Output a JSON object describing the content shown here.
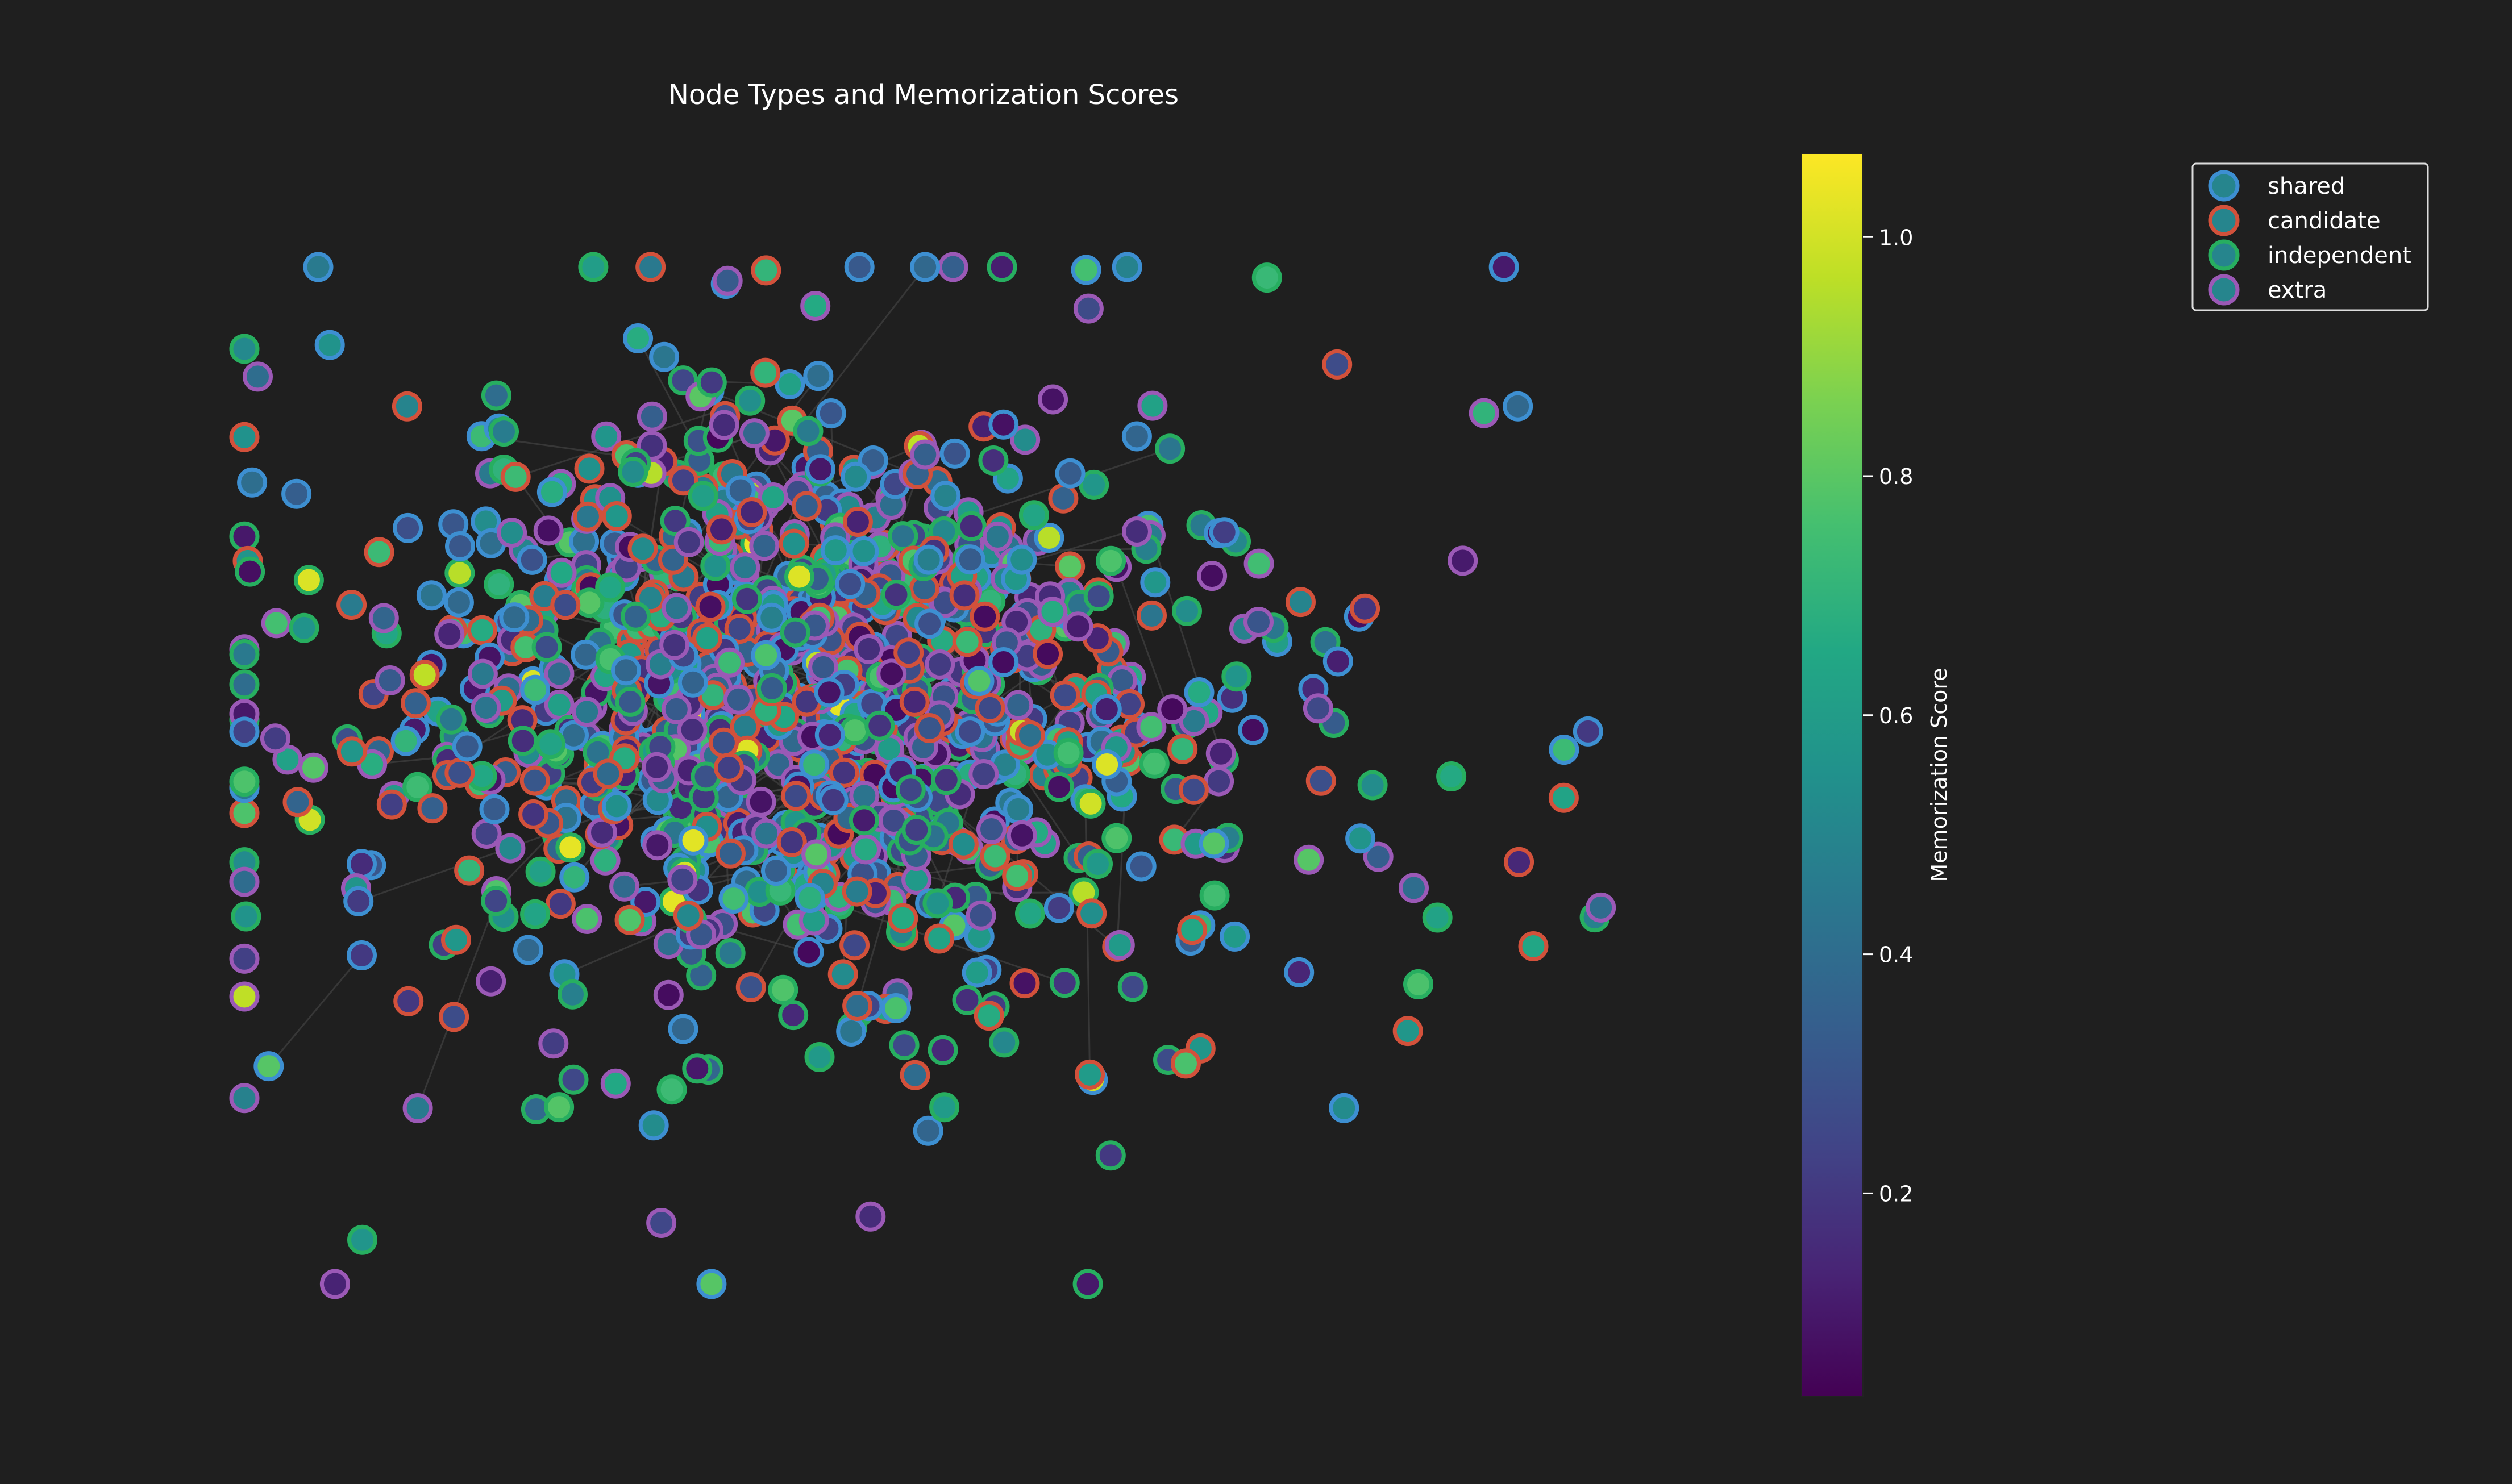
{
  "title": "Node Types and Memorization Scores",
  "colorbar": {
    "label": "Memorization Score",
    "colormap": "viridis",
    "range": [
      0.03,
      1.07
    ],
    "ticks": [
      "0.2",
      "0.4",
      "0.6",
      "0.8",
      "1.0"
    ]
  },
  "legend": {
    "placement": "top-right",
    "entries": [
      {
        "label": "shared",
        "edge_color": "#3d8fd1"
      },
      {
        "label": "candidate",
        "edge_color": "#d2513b"
      },
      {
        "label": "independent",
        "edge_color": "#27ae60"
      },
      {
        "label": "extra",
        "edge_color": "#9b59b6"
      }
    ]
  },
  "graph": {
    "node_count_estimate": 1200,
    "edge_color": "#4a4a4a",
    "background": "#1f1f1f"
  }
}
